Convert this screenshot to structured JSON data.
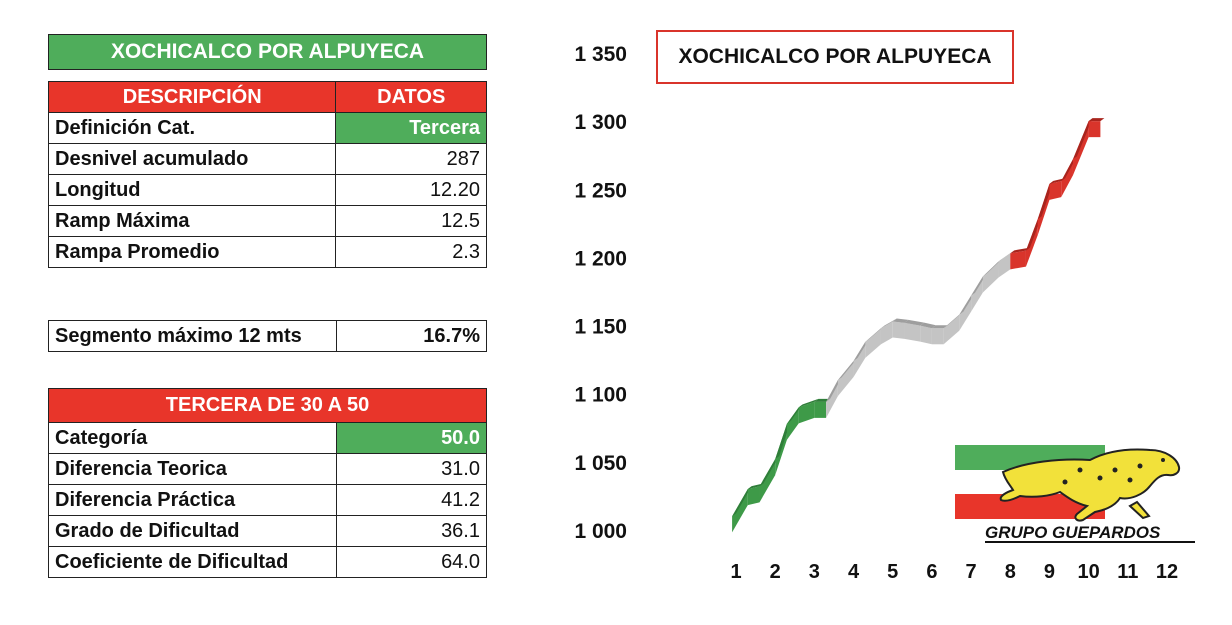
{
  "title": "XOCHICALCO POR ALPUYECA",
  "summary_table": {
    "header": {
      "desc": "DESCRIPCIÓN",
      "datos": "DATOS"
    },
    "rows": [
      {
        "label": "Definición Cat.",
        "value": "Tercera"
      },
      {
        "label": "Desnivel acumulado",
        "value": "287"
      },
      {
        "label": "Longitud",
        "value": "12.20"
      },
      {
        "label": "Ramp Máxima",
        "value": "12.5"
      },
      {
        "label": "Rampa Promedio",
        "value": "2.3"
      }
    ]
  },
  "segment": {
    "label": "Segmento máximo 12 mts",
    "value": "16.7%"
  },
  "category_table": {
    "header": "TERCERA DE 30 A 50",
    "rows": [
      {
        "label": "Categoría",
        "value": "50.0"
      },
      {
        "label": "Diferencia Teorica",
        "value": "31.0"
      },
      {
        "label": "Diferencia Práctica",
        "value": "41.2"
      },
      {
        "label": "Grado de Dificultad",
        "value": "36.1"
      },
      {
        "label": "Coeficiente de Dificultad",
        "value": "64.0"
      }
    ]
  },
  "logo": {
    "text": "GRUPO GUEPARDOS"
  },
  "colors": {
    "green": "#4fad5b",
    "red": "#e8352a",
    "gray": "#bdbdbd"
  },
  "chart_data": {
    "type": "area",
    "title": "XOCHICALCO POR ALPUYECA",
    "xlabel": "",
    "ylabel": "",
    "x_ticks": [
      1,
      2,
      3,
      4,
      5,
      6,
      7,
      8,
      9,
      10,
      11,
      12
    ],
    "y_ticks": [
      1000,
      1050,
      1100,
      1150,
      1200,
      1250,
      1300,
      1350
    ],
    "y_tick_labels": [
      "1 000",
      "1 050",
      "1 100",
      "1 150",
      "1 200",
      "1 250",
      "1 300",
      "1 350"
    ],
    "ylim": [
      1000,
      1350
    ],
    "xlim": [
      0.5,
      12.5
    ],
    "segments": [
      {
        "color": "green",
        "x": [
          0.9,
          1.3,
          1.6,
          2.0,
          2.3,
          2.6,
          3.0,
          3.3
        ],
        "y": [
          1010,
          1030,
          1032,
          1052,
          1078,
          1090,
          1094,
          1094
        ]
      },
      {
        "color": "gray",
        "x": [
          3.3,
          3.6,
          4.0,
          4.3,
          4.7,
          5.0,
          5.3,
          5.7,
          6.0,
          6.3,
          6.7,
          7.0,
          7.3,
          7.7,
          8.0
        ],
        "y": [
          1094,
          1110,
          1124,
          1138,
          1148,
          1153,
          1152,
          1150,
          1148,
          1148,
          1158,
          1172,
          1186,
          1197,
          1203
        ]
      },
      {
        "color": "red",
        "x": [
          8.0,
          8.4,
          8.7,
          9.0,
          9.3,
          9.6,
          10.0,
          10.3
        ],
        "y": [
          1203,
          1205,
          1228,
          1254,
          1256,
          1272,
          1300,
          1300
        ]
      }
    ]
  }
}
